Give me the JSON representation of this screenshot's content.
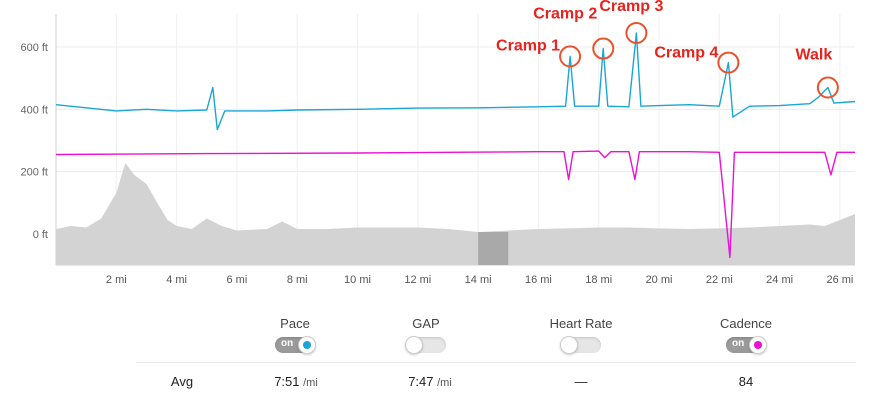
{
  "chart_data": {
    "type": "line",
    "x_unit": "mi",
    "x_range": [
      0,
      26.5
    ],
    "y_ticks": [
      "600 ft",
      "400 ft",
      "200 ft",
      "0 ft"
    ],
    "x_ticks": [
      "2 mi",
      "4 mi",
      "6 mi",
      "8 mi",
      "10 mi",
      "12 mi",
      "14 mi",
      "16 mi",
      "18 mi",
      "20 mi",
      "22 mi",
      "24 mi",
      "26 mi"
    ],
    "grid": true,
    "series": [
      {
        "name": "Pace",
        "color": "#1ba5d6",
        "points": [
          [
            0,
            415
          ],
          [
            1,
            405
          ],
          [
            2,
            395
          ],
          [
            3,
            400
          ],
          [
            4,
            395
          ],
          [
            5,
            398
          ],
          [
            5.2,
            470
          ],
          [
            5.35,
            335
          ],
          [
            5.6,
            395
          ],
          [
            7,
            395
          ],
          [
            8,
            398
          ],
          [
            10,
            400
          ],
          [
            12,
            404
          ],
          [
            14,
            405
          ],
          [
            16,
            408
          ],
          [
            16.9,
            410
          ],
          [
            17.05,
            570
          ],
          [
            17.2,
            410
          ],
          [
            18,
            410
          ],
          [
            18.15,
            595
          ],
          [
            18.3,
            410
          ],
          [
            19,
            408
          ],
          [
            19.25,
            645
          ],
          [
            19.4,
            410
          ],
          [
            20,
            412
          ],
          [
            21,
            415
          ],
          [
            22,
            410
          ],
          [
            22.3,
            550
          ],
          [
            22.45,
            375
          ],
          [
            23,
            410
          ],
          [
            24,
            412
          ],
          [
            25,
            418
          ],
          [
            25.3,
            440
          ],
          [
            25.6,
            470
          ],
          [
            25.8,
            420
          ],
          [
            26.5,
            425
          ]
        ]
      },
      {
        "name": "Cadence",
        "color": "#ec10d6",
        "points": [
          [
            0,
            255
          ],
          [
            5,
            258
          ],
          [
            10,
            260
          ],
          [
            13,
            262
          ],
          [
            16,
            264
          ],
          [
            16.85,
            264
          ],
          [
            17,
            175
          ],
          [
            17.15,
            264
          ],
          [
            18,
            266
          ],
          [
            18.2,
            245
          ],
          [
            18.4,
            264
          ],
          [
            19,
            264
          ],
          [
            19.2,
            175
          ],
          [
            19.35,
            264
          ],
          [
            21,
            264
          ],
          [
            22,
            262
          ],
          [
            22.35,
            -75
          ],
          [
            22.5,
            262
          ],
          [
            24,
            262
          ],
          [
            25.5,
            262
          ],
          [
            25.7,
            190
          ],
          [
            25.9,
            262
          ],
          [
            26.5,
            262
          ]
        ]
      }
    ],
    "elevation": {
      "color": "#d3d3d3",
      "points": [
        [
          0,
          10
        ],
        [
          0.5,
          20
        ],
        [
          1,
          15
        ],
        [
          1.5,
          45
        ],
        [
          2,
          130
        ],
        [
          2.3,
          230
        ],
        [
          2.6,
          190
        ],
        [
          3,
          160
        ],
        [
          3.4,
          90
        ],
        [
          3.7,
          40
        ],
        [
          4,
          20
        ],
        [
          4.5,
          10
        ],
        [
          5,
          45
        ],
        [
          5.5,
          20
        ],
        [
          6,
          5
        ],
        [
          7,
          10
        ],
        [
          7.5,
          35
        ],
        [
          8,
          10
        ],
        [
          9,
          10
        ],
        [
          10,
          15
        ],
        [
          11,
          15
        ],
        [
          12,
          15
        ],
        [
          13,
          10
        ],
        [
          13.5,
          5
        ],
        [
          14,
          0
        ],
        [
          15,
          5
        ],
        [
          16,
          10
        ],
        [
          17,
          12
        ],
        [
          18,
          15
        ],
        [
          19,
          15
        ],
        [
          20,
          12
        ],
        [
          21,
          10
        ],
        [
          22,
          12
        ],
        [
          23,
          15
        ],
        [
          24,
          20
        ],
        [
          25,
          25
        ],
        [
          25.5,
          20
        ],
        [
          26,
          40
        ],
        [
          26.5,
          60
        ]
      ]
    },
    "annotations": [
      {
        "text": "Cramp 1",
        "x": 17.05,
        "y": 570
      },
      {
        "text": "Cramp 2",
        "x": 18.15,
        "y": 595
      },
      {
        "text": "Cramp 3",
        "x": 19.25,
        "y": 645
      },
      {
        "text": "Cramp 4",
        "x": 22.3,
        "y": 550
      },
      {
        "text": "Walk",
        "x": 25.6,
        "y": 470
      }
    ]
  },
  "controls": [
    {
      "label": "Pace",
      "on": true,
      "on_text": "on",
      "dot_color": "#1ba5d6"
    },
    {
      "label": "GAP",
      "on": false
    },
    {
      "label": "Heart Rate",
      "on": false
    },
    {
      "label": "Cadence",
      "on": true,
      "on_text": "on",
      "dot_color": "#ec10d6"
    }
  ],
  "avg": {
    "label": "Avg",
    "pace": "7:51",
    "pace_unit": "/mi",
    "gap": "7:47",
    "gap_unit": "/mi",
    "heart_rate": "—",
    "cadence": "84"
  }
}
